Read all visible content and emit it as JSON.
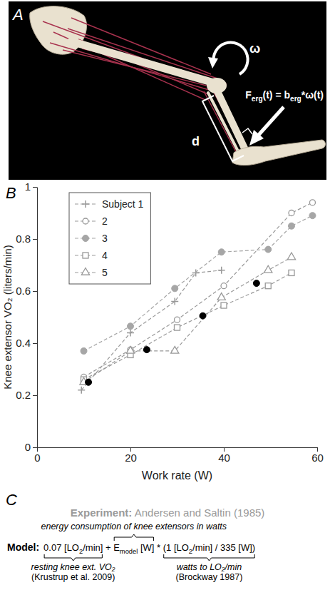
{
  "panel_letters": [
    "A",
    "B",
    "C"
  ],
  "panel_a": {
    "omega_label": "ω",
    "force_label": [
      {
        "text": "F"
      },
      {
        "text": "erg",
        "sub": true
      },
      {
        "text": "(t) = b"
      },
      {
        "text": "erg",
        "sub": true
      },
      {
        "text": "*ω(t)"
      }
    ],
    "distance_label": "d"
  },
  "chart_data": {
    "type": "line",
    "x_label": "Work rate (W)",
    "y_label": "Knee extensor VO₂ (liters/min)",
    "xlim": [
      0,
      60
    ],
    "xticks": [
      0,
      20,
      40,
      60
    ],
    "ylim": [
      0,
      1
    ],
    "yticks": [
      0,
      0.2,
      0.4,
      0.6,
      0.8,
      1
    ],
    "grid": false,
    "legend": "top-left",
    "series": [
      {
        "name": "Subject 1",
        "color": "#999999",
        "marker": "plus",
        "line_style": "dashed",
        "x": [
          9.5,
          20,
          29.5,
          34,
          39.5
        ],
        "values": [
          0.22,
          0.44,
          0.56,
          0.67,
          0.68
        ]
      },
      {
        "name": "2",
        "color": "#999999",
        "marker": "circle-open",
        "line_style": "dashed",
        "x": [
          10,
          20,
          30,
          40,
          54.5,
          59
        ],
        "values": [
          0.27,
          0.375,
          0.49,
          0.62,
          0.9,
          0.94
        ]
      },
      {
        "name": "3",
        "color": "#a6a6a6",
        "marker": "circle",
        "line_style": "dashed",
        "x": [
          10,
          20,
          29.5,
          39.5,
          49.5,
          54.5,
          59
        ],
        "values": [
          0.37,
          0.465,
          0.61,
          0.75,
          0.76,
          0.85,
          0.89
        ]
      },
      {
        "name": "4",
        "color": "#999999",
        "marker": "square-open",
        "line_style": "dashed",
        "x": [
          10,
          20,
          30,
          40,
          49.5,
          54.5
        ],
        "values": [
          0.26,
          0.355,
          0.46,
          0.545,
          0.62,
          0.67
        ]
      },
      {
        "name": "5",
        "color": "#999999",
        "marker": "triangle-open",
        "line_style": "dashed",
        "x": [
          10,
          20,
          29.5,
          39.5,
          49.5,
          54.5
        ],
        "values": [
          0.25,
          0.37,
          0.37,
          0.575,
          0.68,
          0.73
        ]
      },
      {
        "color": "#000000",
        "marker": "circle",
        "line_style": "none",
        "x": [
          11,
          23.5,
          35.5,
          47
        ],
        "values": [
          0.25,
          0.375,
          0.505,
          0.63
        ]
      }
    ]
  },
  "panel_c": {
    "experiment": {
      "label": "Experiment:",
      "text": "Andersen and Saltin (1985)"
    },
    "model_label": "Model:",
    "terms": [
      {
        "parts": [
          {
            "text": "0.07 [LO"
          },
          {
            "text": "2",
            "sub": true
          },
          {
            "text": "/min]"
          }
        ],
        "below": [
          "resting knee ext. VO₂",
          "(Krustrup et al. 2009)"
        ]
      },
      {
        "parts": [
          {
            "text": " + "
          }
        ]
      },
      {
        "parts": [
          {
            "text": "E"
          },
          {
            "text": "model",
            "sub": true
          },
          {
            "text": " [W]"
          }
        ],
        "above": [
          "energy consumption of knee extensors in watts"
        ]
      },
      {
        "parts": [
          {
            "text": " * "
          }
        ]
      },
      {
        "parts": [
          {
            "text": "(1 [LO"
          },
          {
            "text": "2",
            "sub": true
          },
          {
            "text": "/min] / 335 [W])"
          }
        ],
        "below": [
          "watts to LO₂/min",
          "(Brockway 1987)"
        ]
      }
    ]
  }
}
